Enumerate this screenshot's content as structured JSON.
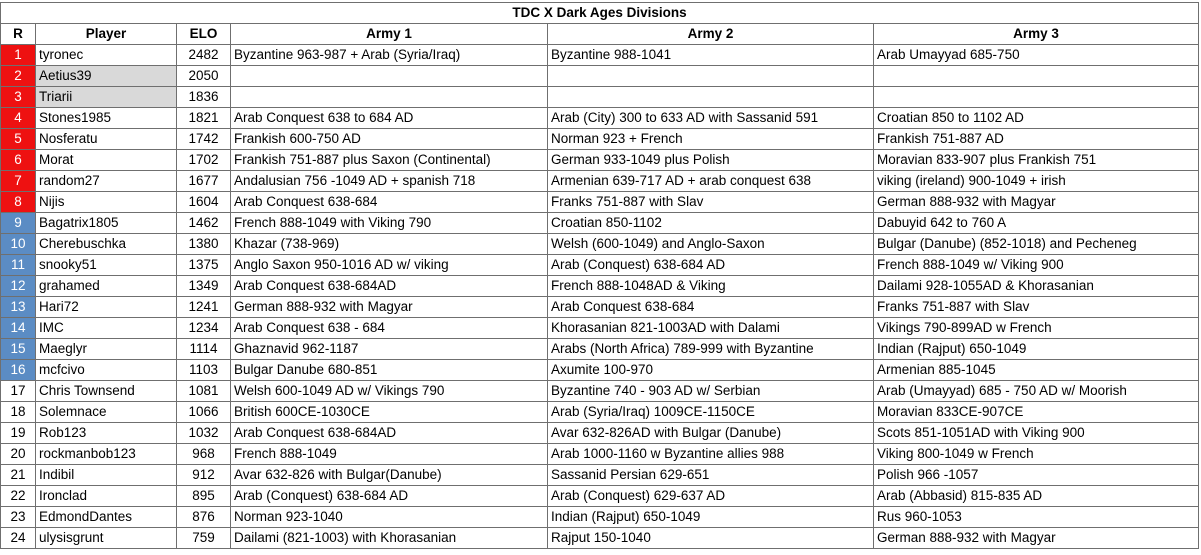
{
  "title": "TDC X Dark Ages Divisions",
  "headers": {
    "rank": "R",
    "player": "Player",
    "elo": "ELO",
    "army1": "Army 1",
    "army2": "Army 2",
    "army3": "Army 3"
  },
  "colors": {
    "red_rank": "#ee1111",
    "blue_rank": "#5b8cc4",
    "grey_player": "#d9d9d9"
  },
  "rows": [
    {
      "rank": "1",
      "rank_style": "red",
      "player": "tyronec",
      "player_grey": false,
      "elo": "2482",
      "army1": "Byzantine 963-987 + Arab (Syria/Iraq)",
      "army2": "Byzantine 988-1041",
      "army3": "Arab Umayyad 685-750"
    },
    {
      "rank": "2",
      "rank_style": "red",
      "player": "Aetius39",
      "player_grey": true,
      "elo": "2050",
      "army1": "",
      "army2": "",
      "army3": ""
    },
    {
      "rank": "3",
      "rank_style": "red",
      "player": "Triarii",
      "player_grey": true,
      "elo": "1836",
      "army1": "",
      "army2": "",
      "army3": ""
    },
    {
      "rank": "4",
      "rank_style": "red",
      "player": "Stones1985",
      "player_grey": false,
      "elo": "1821",
      "army1": "Arab Conquest 638 to 684 AD",
      "army2": "Arab (City) 300 to 633 AD with Sassanid 591",
      "army3": "Croatian 850 to 1102 AD"
    },
    {
      "rank": "5",
      "rank_style": "red",
      "player": "Nosferatu",
      "player_grey": false,
      "elo": "1742",
      "army1": "Frankish 600-750 AD",
      "army2": "Norman 923 + French",
      "army3": "Frankish 751-887 AD"
    },
    {
      "rank": "6",
      "rank_style": "red",
      "player": "Morat",
      "player_grey": false,
      "elo": "1702",
      "army1": "Frankish 751-887 plus Saxon (Continental)",
      "army2": "German 933-1049 plus Polish",
      "army3": "Moravian 833-907 plus Frankish 751"
    },
    {
      "rank": "7",
      "rank_style": "red",
      "player": "random27",
      "player_grey": false,
      "elo": "1677",
      "army1": "Andalusian 756 -1049 AD + spanish 718",
      "army2": "Armenian 639-717 AD + arab conquest 638",
      "army3": "viking (ireland) 900-1049 + irish"
    },
    {
      "rank": "8",
      "rank_style": "red",
      "player": "Nijis",
      "player_grey": false,
      "elo": "1604",
      "army1": "Arab Conquest 638-684",
      "army2": "Franks 751-887 with Slav",
      "army3": "German 888-932 with Magyar"
    },
    {
      "rank": "9",
      "rank_style": "blue",
      "player": "Bagatrix1805",
      "player_grey": false,
      "elo": "1462",
      "army1": "French 888-1049 with Viking 790",
      "army2": "Croatian 850-1102",
      "army3": "Dabuyid 642 to 760 A"
    },
    {
      "rank": "10",
      "rank_style": "blue",
      "player": "Cherebuschka",
      "player_grey": false,
      "elo": "1380",
      "army1": "Khazar (738-969)",
      "army2": "Welsh (600-1049) and Anglo-Saxon",
      "army3": "Bulgar (Danube) (852-1018) and Pecheneg"
    },
    {
      "rank": "11",
      "rank_style": "blue",
      "player": "snooky51",
      "player_grey": false,
      "elo": "1375",
      "army1": "Anglo Saxon 950-1016 AD w/ viking",
      "army2": "Arab (Conquest) 638-684 AD",
      "army3": "French 888-1049 w/ Viking 900"
    },
    {
      "rank": "12",
      "rank_style": "blue",
      "player": "grahamed",
      "player_grey": false,
      "elo": "1349",
      "army1": "Arab Conquest 638-684AD",
      "army2": "French 888-1048AD & Viking",
      "army3": "Dailami 928-1055AD & Khorasanian"
    },
    {
      "rank": "13",
      "rank_style": "blue",
      "player": "Hari72",
      "player_grey": false,
      "elo": "1241",
      "army1": "German 888-932 with Magyar",
      "army2": "Arab Conquest 638-684",
      "army3": "Franks 751-887 with Slav"
    },
    {
      "rank": "14",
      "rank_style": "blue",
      "player": "IMC",
      "player_grey": false,
      "elo": "1234",
      "army1": "Arab Conquest 638 - 684",
      "army2": "Khorasanian 821-1003AD with Dalami",
      "army3": "Vikings 790-899AD w French"
    },
    {
      "rank": "15",
      "rank_style": "blue",
      "player": "Maeglyr",
      "player_grey": false,
      "elo": "1114",
      "army1": "Ghaznavid 962-1187",
      "army2": "Arabs (North Africa) 789-999 with Byzantine",
      "army3": "Indian (Rajput) 650-1049"
    },
    {
      "rank": "16",
      "rank_style": "blue",
      "player": "mcfcivo",
      "player_grey": false,
      "elo": "1103",
      "army1": "Bulgar Danube 680-851",
      "army2": "Axumite 100-970",
      "army3": "Armenian 885-1045"
    },
    {
      "rank": "17",
      "rank_style": "plain",
      "player": "Chris Townsend",
      "player_grey": false,
      "elo": "1081",
      "army1": "Welsh 600-1049 AD w/ Vikings 790",
      "army2": "Byzantine 740 - 903 AD w/ Serbian",
      "army3": "Arab (Umayyad) 685 - 750 AD w/ Moorish"
    },
    {
      "rank": "18",
      "rank_style": "plain",
      "player": "Solemnace",
      "player_grey": false,
      "elo": "1066",
      "army1": "British 600CE-1030CE",
      "army2": "Arab (Syria/Iraq) 1009CE-1150CE",
      "army3": "Moravian 833CE-907CE"
    },
    {
      "rank": "19",
      "rank_style": "plain",
      "player": "Rob123",
      "player_grey": false,
      "elo": "1032",
      "army1": "Arab Conquest 638-684AD",
      "army2": "Avar 632-826AD with Bulgar (Danube)",
      "army3": "Scots 851-1051AD with Viking 900"
    },
    {
      "rank": "20",
      "rank_style": "plain",
      "player": "rockmanbob123",
      "player_grey": false,
      "elo": "968",
      "army1": "French 888-1049",
      "army2": "Arab 1000-1160 w Byzantine allies 988",
      "army3": "Viking 800-1049 w French"
    },
    {
      "rank": "21",
      "rank_style": "plain",
      "player": "Indibil",
      "player_grey": false,
      "elo": "912",
      "army1": "Avar 632-826 with Bulgar(Danube)",
      "army2": "Sassanid Persian 629-651",
      "army3": "Polish 966 -1057"
    },
    {
      "rank": "22",
      "rank_style": "plain",
      "player": "Ironclad",
      "player_grey": false,
      "elo": "895",
      "army1": "Arab (Conquest) 638-684 AD",
      "army2": "Arab (Conquest) 629-637 AD",
      "army3": "Arab (Abbasid) 815-835 AD"
    },
    {
      "rank": "23",
      "rank_style": "plain",
      "player": "EdmondDantes",
      "player_grey": false,
      "elo": "876",
      "army1": "Norman 923-1040",
      "army2": "Indian (Rajput) 650-1049",
      "army3": "Rus 960-1053"
    },
    {
      "rank": "24",
      "rank_style": "plain",
      "player": "ulysisgrunt",
      "player_grey": false,
      "elo": "759",
      "army1": "Dailami (821-1003) with Khorasanian",
      "army2": "Rajput 150-1040",
      "army3": "German 888-932 with Magyar"
    }
  ]
}
